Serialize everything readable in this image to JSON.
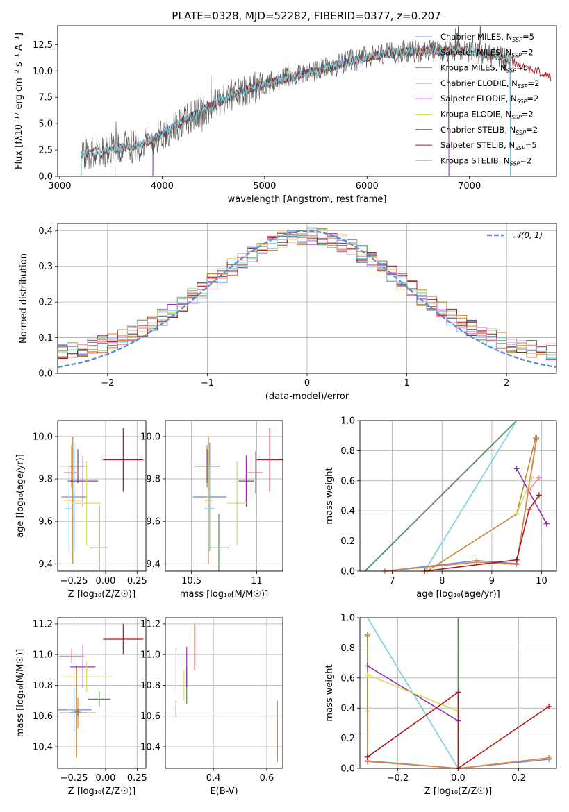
{
  "figure": {
    "title": "PLATE=0328, MJD=52282, FIBERID=0377, z=0.207"
  },
  "colors": {
    "Chabrier MILES": "#6b8fd6",
    "Salpeter MILES": "#e8833a",
    "Kroupa MILES": "#c08a3a",
    "Chabrier ELODIE": "#5a8a5a",
    "Salpeter ELODIE": "#9b30b0",
    "Kroupa ELODIE": "#d4e157",
    "Chabrier STELIB": "#555555",
    "Salpeter STELIB": "#b0181e",
    "Kroupa STELIB": "#7fd3dd",
    "gauss": "#5a8fd6",
    "pink": "#f28ab2"
  },
  "chart_data": [
    {
      "id": "spectrum",
      "type": "line",
      "xlabel": "wavelength [Angstrom, rest frame]",
      "ylabel": "Flux [f$_λ$10$^{-17}$ erg cm$^{-2}$ s$^{-1}$ A$^{-1}$]",
      "ylabel_display": "Flux [fλ10⁻¹⁷ erg cm⁻² s⁻¹ A⁻¹]",
      "xlim": [
        2980,
        7850
      ],
      "ylim": [
        0,
        14.3
      ],
      "xticks": [
        3000,
        4000,
        5000,
        6000,
        7000
      ],
      "yticks": [
        0.0,
        2.5,
        5.0,
        7.5,
        10.0,
        12.5
      ],
      "grid": false,
      "legend_position": "right",
      "legend": [
        {
          "model": "Chabrier MILES",
          "label": "Chabrier MILES, N",
          "sub": "SSP",
          "tail": "=5"
        },
        {
          "model": "Salpeter MILES",
          "label": "Salpeter MILES, N",
          "sub": "SSP",
          "tail": "=2"
        },
        {
          "model": "Kroupa MILES",
          "label": "Kroupa MILES, N",
          "sub": "SSP",
          "tail": "=5"
        },
        {
          "model": "Chabrier ELODIE",
          "label": "Chabrier ELODIE, N",
          "sub": "SSP",
          "tail": "=2"
        },
        {
          "model": "Salpeter ELODIE",
          "label": "Salpeter ELODIE, N",
          "sub": "SSP",
          "tail": "=2"
        },
        {
          "model": "Kroupa ELODIE",
          "label": "Kroupa ELODIE, N",
          "sub": "SSP",
          "tail": "=2"
        },
        {
          "model": "Chabrier STELIB",
          "label": "Chabrier STELIB, N",
          "sub": "SSP",
          "tail": "=2"
        },
        {
          "model": "Salpeter STELIB",
          "label": "Salpeter STELIB, N",
          "sub": "SSP",
          "tail": "=5"
        },
        {
          "model": "Kroupa STELIB",
          "label": "Kroupa STELIB, N",
          "sub": "SSP",
          "tail": "=2"
        }
      ],
      "approx_continuum": {
        "x": [
          3210,
          3500,
          3800,
          4000,
          4200,
          4500,
          4800,
          5000,
          5200,
          5500,
          5800,
          6000,
          6300,
          6600,
          6900,
          7100,
          7300,
          7400
        ],
        "y": [
          2.2,
          2.5,
          3.0,
          4.0,
          5.2,
          6.8,
          8.2,
          8.7,
          9.3,
          10.0,
          10.8,
          11.3,
          11.8,
          11.9,
          12.0,
          11.7,
          11.4,
          11.0
        ]
      },
      "model_ranges": {
        "Chabrier MILES": [
          3540,
          7400
        ],
        "Salpeter MILES": [
          3540,
          7400
        ],
        "Kroupa MILES": [
          3540,
          7400
        ],
        "Chabrier ELODIE": [
          3910,
          6800
        ],
        "Salpeter ELODIE": [
          3910,
          6800
        ],
        "Kroupa ELODIE": [
          3910,
          6800
        ],
        "Chabrier STELIB": [
          3210,
          7400
        ],
        "Salpeter STELIB": [
          3210,
          7800
        ],
        "Kroupa STELIB": [
          3210,
          7400
        ]
      }
    },
    {
      "id": "residuals",
      "type": "histogram",
      "xlabel": "(data-model)/error",
      "ylabel": "Normed distribution",
      "xlim": [
        -2.5,
        2.5
      ],
      "ylim": [
        0,
        0.42
      ],
      "xticks": [
        -2,
        -1,
        0,
        1,
        2
      ],
      "xtick_labels": [
        "−2",
        "−1",
        "0",
        "1",
        "2"
      ],
      "yticks": [
        0.0,
        0.1,
        0.2,
        0.3,
        0.4
      ],
      "grid": true,
      "legend_position": "top-right",
      "legend": "𝒩(0, 1)",
      "bin_edges_start": -2.5,
      "bin_width": 0.1,
      "n_bins": 50,
      "series_models": [
        "Chabrier MILES",
        "Salpeter MILES",
        "Kroupa MILES",
        "Chabrier ELODIE",
        "Salpeter ELODIE",
        "Kroupa ELODIE",
        "Chabrier STELIB",
        "Salpeter STELIB",
        "Kroupa STELIB"
      ]
    },
    {
      "id": "age-vs-Z",
      "type": "errorbar",
      "xlabel": "Z [log₁₀(Z/Z☉)]",
      "ylabel": "age  [log₁₀(age/yr)]",
      "xlim": [
        -0.38,
        0.32
      ],
      "ylim": [
        9.365,
        10.075
      ],
      "xticks": [
        -0.25,
        0.0,
        0.25
      ],
      "xtick_labels": [
        "−0.25",
        "0.00",
        "0.25"
      ],
      "yticks": [
        9.4,
        9.6,
        9.8,
        10.0
      ],
      "grid": true,
      "points": [
        {
          "model": "Chabrier MILES",
          "x": -0.25,
          "xerr": 0.1,
          "y": 9.715,
          "yerr": 0.255
        },
        {
          "model": "Salpeter MILES",
          "x": -0.27,
          "xerr": 0.1,
          "y": 9.86,
          "yerr": 0.1
        },
        {
          "model": "Kroupa MILES",
          "x": -0.26,
          "xerr": 0.07,
          "y": 9.7,
          "yerr": 0.3
        },
        {
          "model": "Chabrier ELODIE",
          "x": -0.05,
          "xerr": 0.07,
          "y": 9.475,
          "yerr": 0.2
        },
        {
          "model": "Salpeter ELODIE",
          "x": -0.18,
          "xerr": 0.12,
          "y": 9.79,
          "yerr": 0.12
        },
        {
          "model": "Kroupa ELODIE",
          "x": -0.15,
          "xerr": 0.12,
          "y": 9.685,
          "yerr": 0.2
        },
        {
          "model": "Chabrier STELIB",
          "x": -0.22,
          "xerr": 0.07,
          "y": 9.86,
          "yerr": 0.08
        },
        {
          "model": "Salpeter STELIB",
          "x": 0.14,
          "xerr": 0.16,
          "y": 9.89,
          "yerr": 0.15
        },
        {
          "model": "Kroupa STELIB",
          "x": -0.29,
          "xerr": 0.03,
          "y": 9.66,
          "yerr": 0.2
        },
        {
          "model": "pink",
          "x": -0.27,
          "xerr": 0.06,
          "y": 9.83,
          "yerr": 0.0
        }
      ]
    },
    {
      "id": "age-vs-mass",
      "type": "errorbar",
      "xlabel": "mass [log₁₀(M/M☉)]",
      "ylabel": "",
      "xlim": [
        10.3,
        11.2
      ],
      "ylim": [
        9.365,
        10.075
      ],
      "xticks": [
        10.5,
        11.0
      ],
      "yticks": [
        9.4,
        9.6,
        9.8,
        10.0
      ],
      "grid": true,
      "points": [
        {
          "model": "Chabrier MILES",
          "x": 10.64,
          "xerr": 0.13,
          "y": 9.715,
          "yerr": 0.255
        },
        {
          "model": "Salpeter MILES",
          "x": 10.62,
          "xerr": 0.1,
          "y": 9.86,
          "yerr": 0.1
        },
        {
          "model": "Kroupa MILES",
          "x": 10.63,
          "xerr": 0.03,
          "y": 9.7,
          "yerr": 0.3
        },
        {
          "model": "Chabrier ELODIE",
          "x": 10.71,
          "xerr": 0.08,
          "y": 9.475,
          "yerr": 0.16
        },
        {
          "model": "Salpeter ELODIE",
          "x": 10.92,
          "xerr": 0.06,
          "y": 9.79,
          "yerr": 0.12
        },
        {
          "model": "Kroupa ELODIE",
          "x": 10.85,
          "xerr": 0.08,
          "y": 9.685,
          "yerr": 0.2
        },
        {
          "model": "Chabrier STELIB",
          "x": 10.62,
          "xerr": 0.1,
          "y": 9.86,
          "yerr": 0.08
        },
        {
          "model": "Salpeter STELIB",
          "x": 11.1,
          "xerr": 0.1,
          "y": 9.89,
          "yerr": 0.15
        },
        {
          "model": "Kroupa STELIB",
          "x": 10.64,
          "xerr": 0.04,
          "y": 9.66,
          "yerr": 0.2
        },
        {
          "model": "pink",
          "x": 10.99,
          "xerr": 0.06,
          "y": 9.83,
          "yerr": 0.1
        }
      ]
    },
    {
      "id": "weight-vs-age",
      "type": "line",
      "xlabel": "age  [log₁₀(age/yr)]",
      "ylabel": "mass weight",
      "xlim": [
        6.35,
        10.3
      ],
      "ylim": [
        0,
        1
      ],
      "xticks": [
        7,
        8,
        9,
        10
      ],
      "yticks": [
        0.0,
        0.2,
        0.4,
        0.6,
        0.8,
        1.0
      ],
      "grid": true,
      "series": [
        {
          "model": "Chabrier ELODIE",
          "x": [
            6.45,
            9.5
          ],
          "y": [
            0.0,
            1.0
          ],
          "markers": false
        },
        {
          "model": "Kroupa STELIB",
          "x": [
            7.65,
            9.5
          ],
          "y": [
            0.0,
            1.0
          ],
          "markers": false
        },
        {
          "model": "Chabrier MILES",
          "x": [
            6.85,
            8.7,
            9.5,
            9.9
          ],
          "y": [
            0.0,
            0.07,
            0.05,
            0.885
          ],
          "markers": true
        },
        {
          "model": "Salpeter MILES",
          "x": [
            6.85,
            8.7,
            9.5,
            9.9
          ],
          "y": [
            0.0,
            0.06,
            0.045,
            0.875
          ],
          "markers": true
        },
        {
          "model": "Kroupa MILES",
          "x": [
            7.7,
            9.5,
            9.88
          ],
          "y": [
            0.0,
            0.38,
            0.885
          ],
          "markers": true
        },
        {
          "model": "Salpeter ELODIE",
          "x": [
            9.5,
            10.1
          ],
          "y": [
            0.68,
            0.315
          ],
          "markers": true
        },
        {
          "model": "Kroupa ELODIE",
          "x": [
            9.5,
            9.8
          ],
          "y": [
            0.38,
            0.62
          ],
          "markers": true
        },
        {
          "model": "pink",
          "x": [
            9.75,
            9.95
          ],
          "y": [
            0.54,
            0.62
          ],
          "markers": true
        },
        {
          "model": "Salpeter STELIB",
          "x": [
            7.65,
            9.5,
            9.75,
            9.95
          ],
          "y": [
            0.0,
            0.075,
            0.41,
            0.505
          ],
          "markers": true
        }
      ]
    },
    {
      "id": "mass-vs-Z",
      "type": "errorbar",
      "xlabel": "Z [log₁₀(Z/Z☉)]",
      "ylabel": "mass [log₁₀(M/M☉)]",
      "xlim": [
        -0.38,
        0.32
      ],
      "ylim": [
        10.26,
        11.24
      ],
      "xticks": [
        -0.25,
        0.0,
        0.25
      ],
      "xtick_labels": [
        "−0.25",
        "0.00",
        "0.25"
      ],
      "yticks": [
        10.4,
        10.6,
        10.8,
        11.0,
        11.2
      ],
      "grid": true,
      "points": [
        {
          "model": "Chabrier MILES",
          "x": -0.25,
          "xerr": 0.14,
          "y": 10.64,
          "yerr": 0.14
        },
        {
          "model": "Salpeter MILES",
          "x": -0.22,
          "xerr": 0.14,
          "y": 10.62,
          "yerr": 0.1
        },
        {
          "model": "Kroupa MILES",
          "x": -0.23,
          "xerr": 0.03,
          "y": 10.63,
          "yerr": 0.3
        },
        {
          "model": "Chabrier ELODIE",
          "x": -0.05,
          "xerr": 0.09,
          "y": 10.71,
          "yerr": 0.05
        },
        {
          "model": "Salpeter ELODIE",
          "x": -0.18,
          "xerr": 0.1,
          "y": 10.92,
          "yerr": 0.14
        },
        {
          "model": "Kroupa ELODIE",
          "x": -0.15,
          "xerr": 0.2,
          "y": 10.855,
          "yerr": 0.1
        },
        {
          "model": "Chabrier STELIB",
          "x": -0.22,
          "xerr": 0.07,
          "y": 10.62,
          "yerr": 0.02
        },
        {
          "model": "Salpeter STELIB",
          "x": 0.14,
          "xerr": 0.16,
          "y": 11.1,
          "yerr": 0.1
        },
        {
          "model": "Kroupa STELIB",
          "x": -0.29,
          "xerr": 0.02,
          "y": 10.64,
          "yerr": 0.0
        },
        {
          "model": "pink",
          "x": -0.27,
          "xerr": 0.1,
          "y": 10.99,
          "yerr": 0.05
        }
      ]
    },
    {
      "id": "mass-vs-EBV",
      "type": "errorbar",
      "xlabel": "E(B-V)",
      "ylabel": "",
      "xlim": [
        0.22,
        0.66
      ],
      "ylim": [
        10.26,
        11.24
      ],
      "xticks": [
        0.4,
        0.6
      ],
      "yticks": [
        10.4,
        10.6,
        10.8,
        11.0,
        11.2
      ],
      "grid": true,
      "points": [
        {
          "model": "Chabrier MILES",
          "x": 0.64,
          "xerr": 0.0,
          "y": 10.5,
          "yerr": 0.2
        },
        {
          "model": "Salpeter MILES",
          "x": 0.64,
          "xerr": 0.0,
          "y": 10.5,
          "yerr": 0.2
        },
        {
          "model": "Kroupa MILES",
          "x": 0.64,
          "xerr": 0.0,
          "y": 10.45,
          "yerr": 0.12
        },
        {
          "model": "Chabrier ELODIE",
          "x": 0.3,
          "xerr": 0.0,
          "y": 10.8,
          "yerr": 0.12
        },
        {
          "model": "Salpeter ELODIE",
          "x": 0.3,
          "xerr": 0.0,
          "y": 10.92,
          "yerr": 0.13
        },
        {
          "model": "Kroupa ELODIE",
          "x": 0.29,
          "xerr": 0.0,
          "y": 10.8,
          "yerr": 0.1
        },
        {
          "model": "Chabrier STELIB",
          "x": 0.26,
          "xerr": 0.0,
          "y": 10.65,
          "yerr": 0.05
        },
        {
          "model": "Salpeter STELIB",
          "x": 0.33,
          "xerr": 0.0,
          "y": 11.05,
          "yerr": 0.15
        },
        {
          "model": "Kroupa STELIB",
          "x": 0.26,
          "xerr": 0.0,
          "y": 10.64,
          "yerr": 0.05
        },
        {
          "model": "pink",
          "x": 0.26,
          "xerr": 0.0,
          "y": 10.9,
          "yerr": 0.14
        }
      ]
    },
    {
      "id": "weight-vs-Z",
      "type": "line",
      "xlabel": "Z [log₁₀(Z/Z☉)]",
      "ylabel": "mass weight",
      "xlim": [
        -0.325,
        0.325
      ],
      "ylim": [
        0,
        1
      ],
      "xticks": [
        -0.2,
        0.0,
        0.2
      ],
      "xtick_labels": [
        "−0.2",
        "0.0",
        "0.2"
      ],
      "yticks": [
        0.0,
        0.2,
        0.4,
        0.6,
        0.8,
        1.0
      ],
      "grid": true,
      "series": [
        {
          "model": "Chabrier ELODIE",
          "x": [
            0.0,
            0.0
          ],
          "y": [
            0.0,
            1.0
          ],
          "markers": false
        },
        {
          "model": "Kroupa STELIB",
          "x": [
            -0.3,
            0.0
          ],
          "y": [
            1.0,
            0.0
          ],
          "markers": false
        },
        {
          "model": "Chabrier MILES",
          "x": [
            -0.3,
            -0.3,
            0.0,
            0.3
          ],
          "y": [
            0.885,
            0.05,
            0.0,
            0.06
          ],
          "markers": true
        },
        {
          "model": "Salpeter MILES",
          "x": [
            -0.3,
            -0.3,
            0.0,
            0.3
          ],
          "y": [
            0.875,
            0.045,
            0.0,
            0.07
          ],
          "markers": true
        },
        {
          "model": "Kroupa MILES",
          "x": [
            -0.3,
            -0.3
          ],
          "y": [
            0.885,
            0.38
          ],
          "markers": true
        },
        {
          "model": "Salpeter ELODIE",
          "x": [
            -0.3,
            0.0
          ],
          "y": [
            0.68,
            0.315
          ],
          "markers": true
        },
        {
          "model": "Kroupa ELODIE",
          "x": [
            -0.3,
            0.0
          ],
          "y": [
            0.62,
            0.38
          ],
          "markers": true
        },
        {
          "model": "Salpeter STELIB",
          "x": [
            -0.3,
            0.0,
            0.0
          ],
          "y": [
            0.075,
            0.505,
            0.0
          ],
          "markers": true
        },
        {
          "model": "Salpeter STELIB",
          "x": [
            0.0,
            0.3
          ],
          "y": [
            0.0,
            0.41
          ],
          "markers": true
        }
      ]
    }
  ]
}
